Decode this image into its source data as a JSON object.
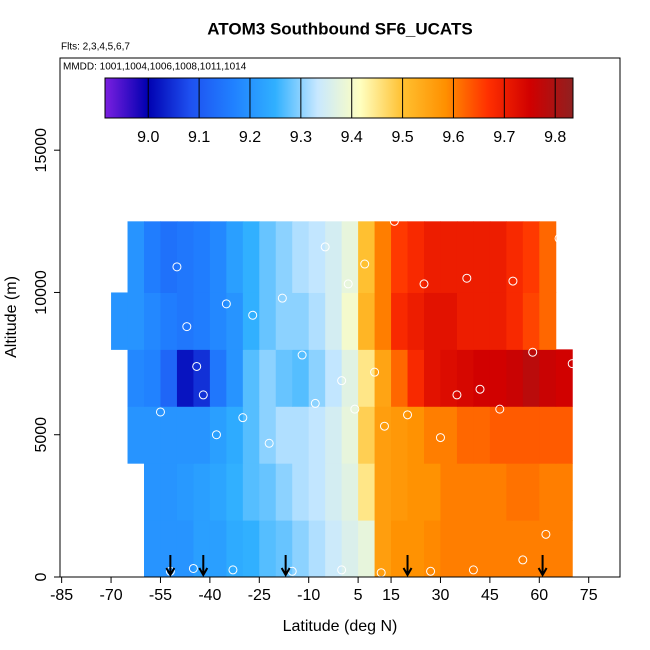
{
  "chart_data": {
    "type": "heatmap",
    "title": "ATOM3 Southbound SF6_UCATS",
    "subtitle": "Flts: 2,3,4,5,6,7",
    "annotation": "MMDD: 1001,1004,1006,1008,1011,1014",
    "x_label": "Latitude (deg N)",
    "y_label": "Altitude (m)",
    "xlim": [
      -85.5,
      84.5
    ],
    "ylim": [
      0,
      18240
    ],
    "xticks": [
      -85,
      -70,
      -55,
      -40,
      -25,
      -10,
      5,
      15,
      30,
      45,
      60,
      75
    ],
    "yticks": [
      0,
      5000,
      10000,
      15000
    ],
    "x_edges": [
      -70,
      -65,
      -60,
      -55,
      -50,
      -45,
      -40,
      -35,
      -30,
      -25,
      -20,
      -15,
      -10,
      -5,
      0,
      5,
      10,
      15,
      20,
      25,
      30,
      35,
      40,
      45,
      50,
      55,
      60,
      65,
      70
    ],
    "y_edges": [
      0,
      2000,
      4000,
      6000,
      8000,
      10000,
      12500
    ],
    "z": [
      [
        null,
        null,
        9.2,
        9.2,
        9.2,
        9.22,
        9.22,
        9.24,
        9.25,
        9.27,
        9.28,
        9.3,
        9.32,
        9.34,
        9.36,
        9.38,
        9.56,
        9.58,
        9.58,
        9.59,
        9.6,
        9.6,
        9.6,
        9.6,
        9.6,
        9.6,
        9.6,
        9.6
      ],
      [
        null,
        null,
        9.2,
        9.2,
        9.21,
        9.22,
        9.23,
        9.25,
        9.27,
        9.28,
        9.3,
        9.32,
        9.33,
        9.35,
        9.37,
        9.45,
        9.56,
        9.57,
        9.58,
        9.58,
        9.6,
        9.6,
        9.6,
        9.6,
        9.61,
        9.61,
        9.6,
        9.6
      ],
      [
        null,
        9.2,
        9.2,
        9.2,
        9.2,
        9.2,
        9.22,
        9.24,
        9.27,
        9.3,
        9.32,
        9.32,
        9.33,
        9.35,
        9.38,
        9.48,
        9.56,
        9.57,
        9.58,
        9.6,
        9.6,
        9.62,
        9.62,
        9.63,
        9.63,
        9.63,
        9.63,
        9.63
      ],
      [
        null,
        9.18,
        9.17,
        9.12,
        9.02,
        9.05,
        9.15,
        9.2,
        9.27,
        9.3,
        9.28,
        9.27,
        9.3,
        9.33,
        9.37,
        9.45,
        9.55,
        9.62,
        9.68,
        9.72,
        9.73,
        9.74,
        9.75,
        9.75,
        9.76,
        9.78,
        9.76,
        9.75
      ],
      [
        9.2,
        9.2,
        9.18,
        9.16,
        9.15,
        9.16,
        9.18,
        9.2,
        9.25,
        9.28,
        9.3,
        9.3,
        9.32,
        9.35,
        9.4,
        9.52,
        9.6,
        9.68,
        9.7,
        9.72,
        9.72,
        9.7,
        9.7,
        9.7,
        9.68,
        9.65,
        9.62,
        null
      ],
      [
        null,
        9.2,
        9.16,
        9.14,
        9.15,
        9.16,
        9.18,
        9.22,
        9.25,
        9.28,
        9.3,
        9.32,
        9.33,
        9.35,
        9.38,
        9.5,
        9.6,
        9.66,
        9.68,
        9.7,
        9.7,
        9.7,
        9.7,
        9.7,
        9.68,
        9.66,
        9.62,
        null
      ]
    ],
    "zlim": [
      8.915,
      9.835
    ],
    "colorscale": [
      "#7b1fe0",
      "#0000b0",
      "#1e50f0",
      "#2080ff",
      "#30b0ff",
      "#c8e8ff",
      "#ffffc0",
      "#ffc030",
      "#ff9000",
      "#ff3000",
      "#d00000",
      "#902020"
    ],
    "cticks": [
      {
        "value": 9.0,
        "label": "9.0"
      },
      9.1,
      9.2,
      9.3,
      9.4,
      9.5,
      9.6,
      9.7,
      9.8
    ],
    "points": {
      "x": [
        -55,
        -50,
        -47,
        -44,
        -42,
        -38,
        -35,
        -30,
        -27,
        -22,
        -18,
        -12,
        -8,
        -5,
        0,
        2,
        4,
        7,
        10,
        13,
        16,
        20,
        25,
        30,
        35,
        38,
        42,
        48,
        52,
        58,
        62,
        66,
        70,
        -52,
        -45,
        -33,
        -15,
        0,
        12,
        27,
        40,
        55
      ],
      "y": [
        5800,
        10900,
        8800,
        7400,
        6400,
        5000,
        9600,
        5600,
        9200,
        4700,
        9800,
        7800,
        6100,
        11600,
        6900,
        10300,
        5900,
        11000,
        7200,
        5300,
        12500,
        5700,
        10300,
        4900,
        6400,
        10500,
        6600,
        5900,
        10400,
        7900,
        1500,
        11900,
        7500,
        200,
        300,
        250,
        200,
        250,
        150,
        200,
        250,
        600
      ]
    },
    "point_color": "#ffffff",
    "arrows_x": [
      -52,
      -42,
      -17,
      20,
      61
    ]
  }
}
